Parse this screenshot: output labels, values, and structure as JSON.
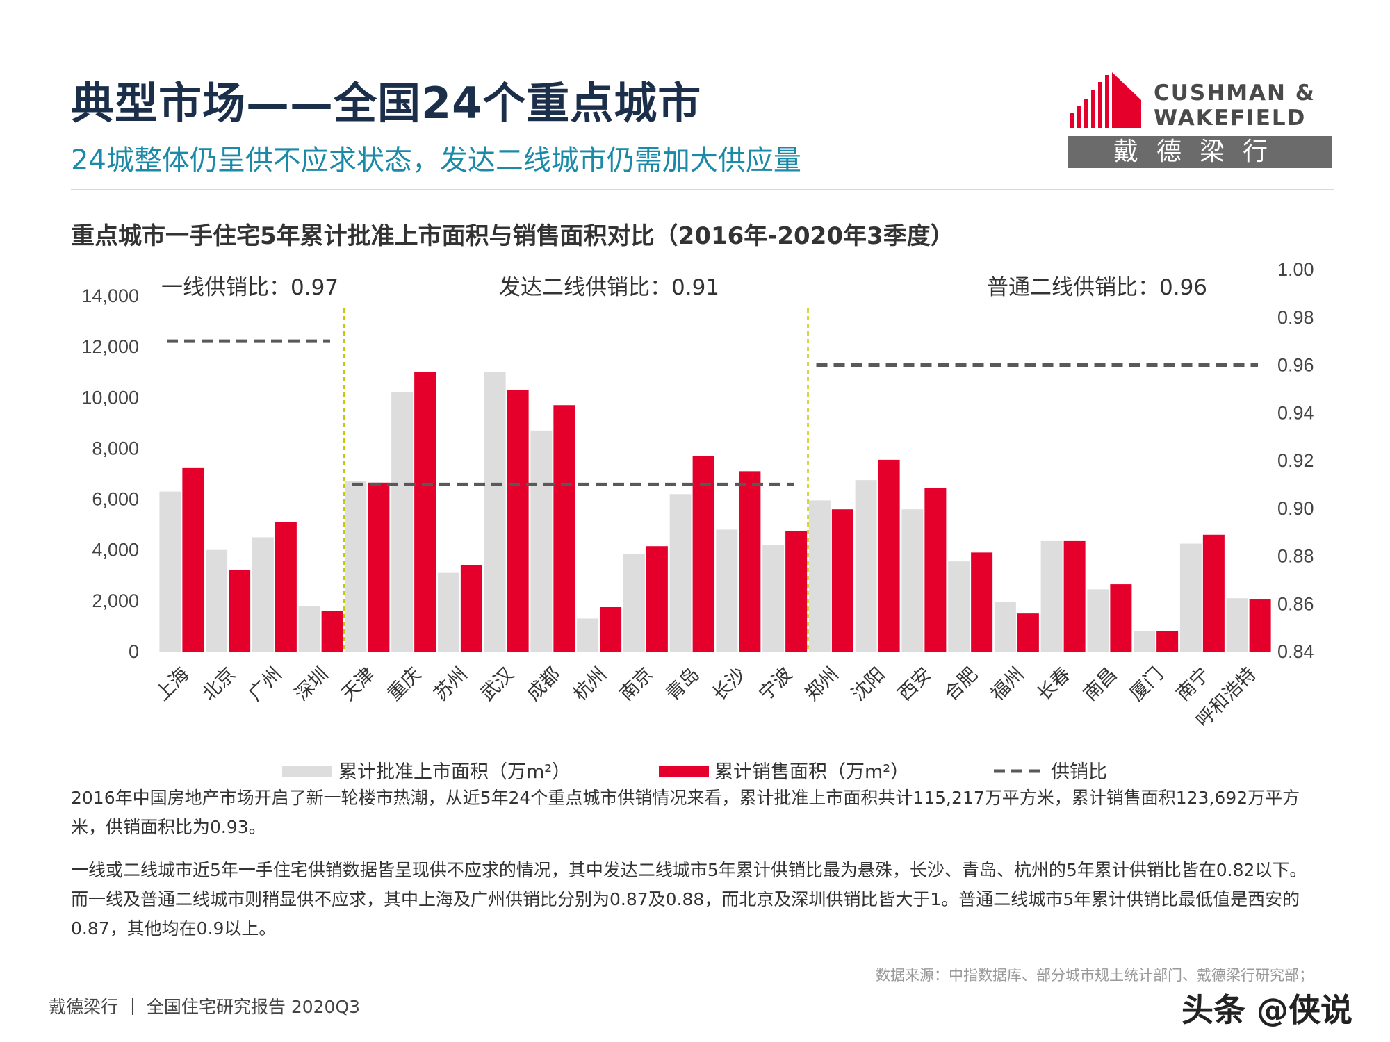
{
  "header": {
    "title": "典型市场——全国24个重点城市",
    "subtitle": "24城整体仍呈供不应求状态，发达二线城市仍需加大供应量"
  },
  "logo": {
    "line1": "CUSHMAN &",
    "line2": "WAKEFIELD",
    "cn": "戴德梁行",
    "brand_color": "#e4002b"
  },
  "chart_data": {
    "type": "bar",
    "title": "重点城市一手住宅5年累计批准上市面积与销售面积对比（2016年-2020年3季度）",
    "categories": [
      "上海",
      "北京",
      "广州",
      "深圳",
      "天津",
      "重庆",
      "苏州",
      "武汉",
      "成都",
      "杭州",
      "南京",
      "青岛",
      "长沙",
      "宁波",
      "郑州",
      "沈阳",
      "西安",
      "合肥",
      "福州",
      "长春",
      "南昌",
      "厦门",
      "南宁",
      "呼和浩特"
    ],
    "series": [
      {
        "name": "累计批准上市面积（万m²）",
        "color": "#dddddd",
        "values": [
          6300,
          4000,
          4500,
          1800,
          6700,
          10200,
          3100,
          11000,
          8700,
          1300,
          3850,
          6200,
          4800,
          4200,
          5950,
          6750,
          5600,
          3550,
          1950,
          4350,
          2450,
          800,
          4250,
          2100
        ]
      },
      {
        "name": "累计销售面积（万m²）",
        "color": "#e4002b",
        "values": [
          7250,
          3200,
          5100,
          1600,
          6650,
          11000,
          3400,
          10300,
          9700,
          1750,
          4150,
          7700,
          7100,
          4750,
          5600,
          7550,
          6450,
          3900,
          1500,
          4350,
          2650,
          820,
          4600,
          2050
        ]
      },
      {
        "name": "供销比",
        "color": "#595959",
        "style": "dashed",
        "segments": [
          {
            "from": "上海",
            "to": "深圳",
            "value": 0.97
          },
          {
            "from": "天津",
            "to": "宁波",
            "value": 0.91
          },
          {
            "from": "郑州",
            "to": "呼和浩特",
            "value": 0.96
          }
        ]
      }
    ],
    "y_left": {
      "ylim": [
        0,
        14000
      ],
      "ticks": [
        "0",
        "2,000",
        "4,000",
        "6,000",
        "8,000",
        "10,000",
        "12,000",
        "14,000"
      ]
    },
    "y_right": {
      "ylim": [
        0.84,
        1.0
      ],
      "ticks": [
        "0.84",
        "0.86",
        "0.88",
        "0.90",
        "0.92",
        "0.94",
        "0.96",
        "0.98",
        "1.00"
      ]
    },
    "group_labels": [
      "一线供销比：0.97",
      "发达二线供销比：0.91",
      "普通二线供销比：0.96"
    ],
    "group_dividers_after": [
      "深圳",
      "宁波"
    ],
    "legend_placement": "bottom",
    "grid": false
  },
  "body_text": {
    "p1": "2016年中国房地产市场开启了新一轮楼市热潮，从近5年24个重点城市供销情况来看，累计批准上市面积共计115,217万平方米，累计销售面积123,692万平方米，供销面积比为0.93。",
    "p2": "一线或二线城市近5年一手住宅供销数据皆呈现供不应求的情况，其中发达二线城市5年累计供销比最为悬殊，长沙、青岛、杭州的5年累计供销比皆在0.82以下。而一线及普通二线城市则稍显供不应求，其中上海及广州供销比分别为0.87及0.88，而北京及深圳供销比皆大于1。普通二线城市5年累计供销比最低值是西安的0.87，其他均在0.9以上。"
  },
  "source": "数据来源：中指数据库、部分城市规土统计部门、戴德梁行研究部；",
  "footer": "戴德梁行 ｜ 全国住宅研究报告 2020Q3",
  "watermark": "头条 @侠说"
}
